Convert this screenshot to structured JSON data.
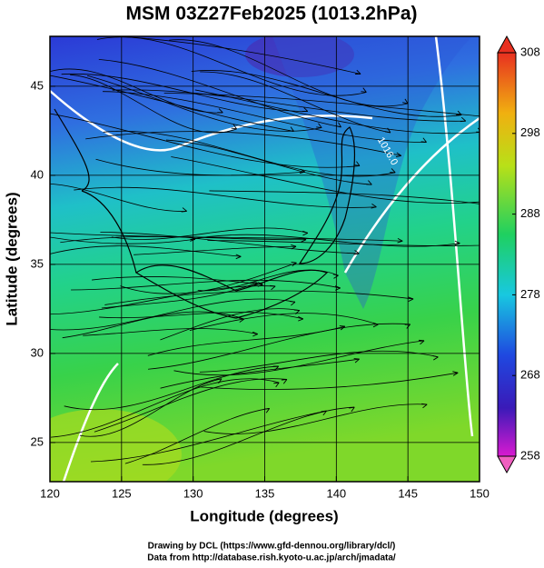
{
  "chart_data": {
    "type": "map",
    "title": "MSM 03Z27Feb2025 (1013.2hPa)",
    "xlabel": "Longitude (degrees)",
    "ylabel": "Latitude  (degrees)",
    "xlim": [
      120,
      150
    ],
    "xticks": [
      120,
      125,
      130,
      135,
      140,
      145,
      150
    ],
    "ylim": [
      22.8,
      47.8
    ],
    "yticks": [
      25,
      30,
      35,
      40,
      45
    ],
    "grid": true,
    "contour_label": "1016.0",
    "colorbar": {
      "lim": [
        258,
        308
      ],
      "ticks": [
        258,
        268,
        278,
        288,
        298,
        308
      ]
    },
    "credits": [
      "Drawing by DCL (https://www.gfd-dennou.org/library/dcl/)",
      "Data from http://database.rish.kyoto-u.ac.jp/arch/jmadata/"
    ]
  }
}
